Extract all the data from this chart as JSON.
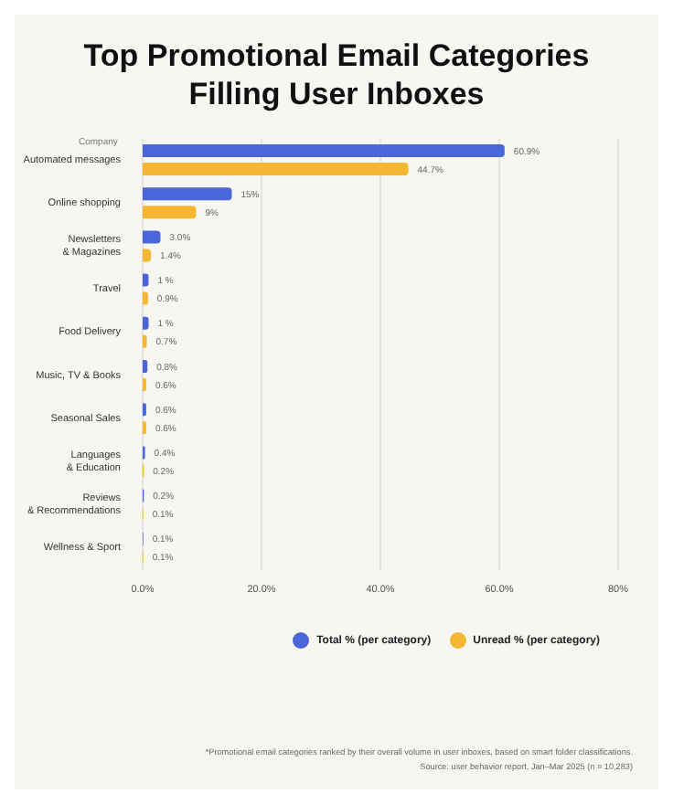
{
  "chart_data": {
    "type": "bar",
    "orientation": "horizontal",
    "title": "Top Promotional Email Categories Filling User Inboxes",
    "ylabel": "Company",
    "categories": [
      "Automated messages",
      "Online shopping",
      "Newsletters & Magazines",
      "Travel",
      "Food Delivery",
      "Music, TV & Books",
      "Seasonal Sales",
      "Languages & Education",
      "Reviews & Recommendations",
      "Wellness & Sport"
    ],
    "series": [
      {
        "name": "Total % (per category)",
        "color": "#4a66d9",
        "values": [
          60.9,
          15,
          3.0,
          1,
          1,
          0.8,
          0.6,
          0.4,
          0.2,
          0.1
        ],
        "value_labels": [
          "60.9%",
          "15%",
          "3.0%",
          "1 %",
          "1 %",
          "0.8%",
          "0.6%",
          "0.4%",
          "0.2%",
          "0.1%"
        ]
      },
      {
        "name": "Unread % (per category)",
        "color": "#f5b731",
        "values": [
          44.7,
          9,
          1.4,
          0.9,
          0.7,
          0.6,
          0.6,
          0.2,
          0.1,
          0.1
        ],
        "value_labels": [
          "44.7%",
          "9%",
          "1.4%",
          "0.9%",
          "0.7%",
          "0.6%",
          "0.6%",
          "0.2%",
          "0.1%",
          "0.1%"
        ]
      }
    ],
    "xlim": [
      0,
      80
    ],
    "xticks": [
      {
        "value": 0,
        "label": "0.0%"
      },
      {
        "value": 20,
        "label": "20.0%"
      },
      {
        "value": 40,
        "label": "40.0%"
      },
      {
        "value": 60,
        "label": "60.0%"
      },
      {
        "value": 80,
        "label": "80%"
      }
    ],
    "grid": "x",
    "legend": "bottom",
    "annotations": [
      "*Promotional email categories ranked by their overall volume in user inboxes, based on smart folder classifications.",
      "Source: user behavior report, Jan–Mar 2025 (n = 10,283)"
    ]
  }
}
